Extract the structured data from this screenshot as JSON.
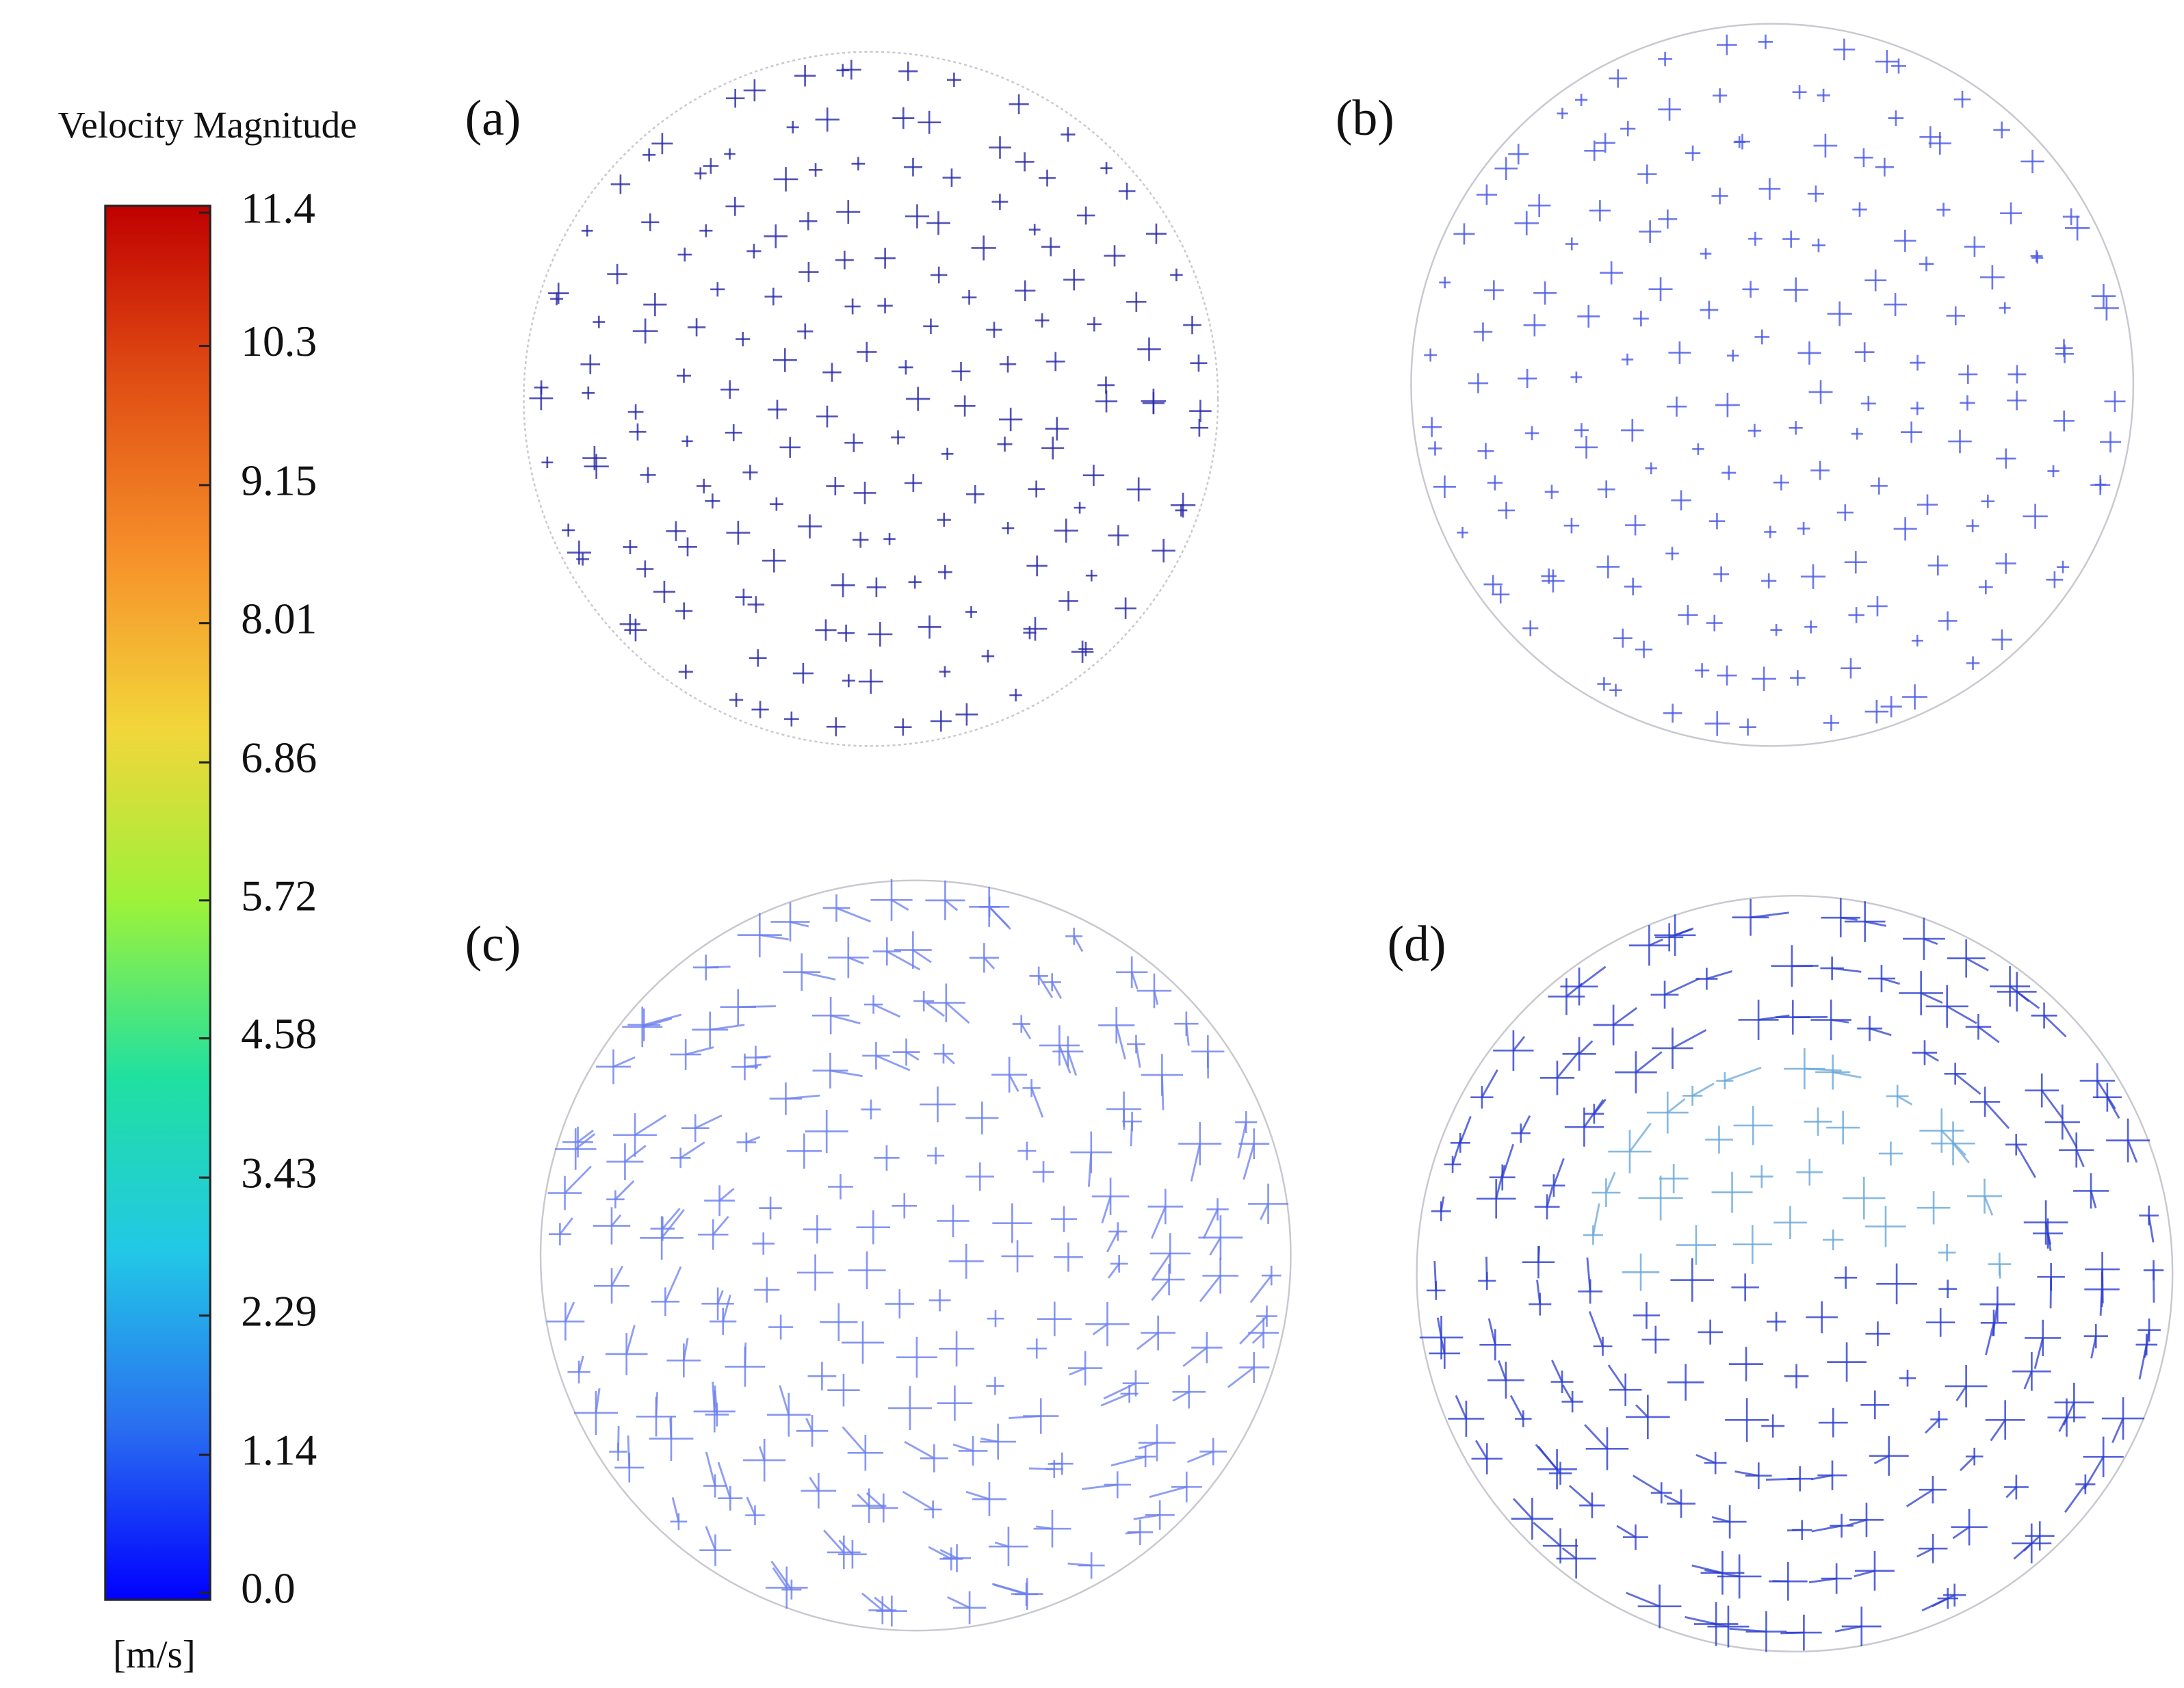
{
  "chart_data": {
    "type": "colorbar",
    "title": "Velocity Magnitude",
    "unit": "[m/s]",
    "ylim": [
      0,
      11.4
    ],
    "yticks": [
      {
        "value": 0,
        "label": "0.0"
      },
      1.14,
      2.29,
      3.43,
      4.58,
      5.72,
      6.86,
      8.01,
      9.15,
      10.3,
      11.4
    ],
    "colors": [
      "#0000ff",
      "#2a6ff0",
      "#22c8e6",
      "#20e0a0",
      "#9cf23a",
      "#f2d63a",
      "#f6902a",
      "#e04e14",
      "#c00000"
    ],
    "panels": [
      "(a)",
      "(b)",
      "(c)",
      "(d)"
    ]
  }
}
